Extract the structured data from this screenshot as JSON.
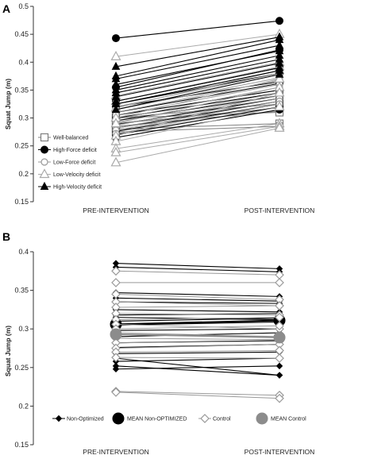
{
  "chart_data": [
    {
      "panel": "A",
      "type": "line",
      "ylabel": "Squat Jump (m)",
      "categories": [
        "PRE-INTERVENTION",
        "POST-INTERVENTION"
      ],
      "ylim": [
        0.15,
        0.5
      ],
      "yticks": [
        "0.15",
        "0.2",
        "0.25",
        "0.3",
        "0.35",
        "0.4",
        "0.45",
        "0.5"
      ],
      "grid": false,
      "legend_position": "lower-left",
      "series": [
        {
          "name": "Well-balanced",
          "marker": "square-open",
          "color": "#7f7f7f",
          "lines": [
            [
              0.3,
              0.325
            ],
            [
              0.29,
              0.318
            ],
            [
              0.285,
              0.312
            ],
            [
              0.28,
              0.29
            ],
            [
              0.275,
              0.285
            ],
            [
              0.3,
              0.31
            ]
          ]
        },
        {
          "name": "High-Force deficit",
          "marker": "circle-filled",
          "color": "#000000",
          "lines": [
            [
              0.443,
              0.474
            ],
            [
              0.355,
              0.422
            ],
            [
              0.33,
              0.39
            ],
            [
              0.325,
              0.38
            ],
            [
              0.32,
              0.365
            ],
            [
              0.31,
              0.362
            ],
            [
              0.305,
              0.35
            ],
            [
              0.3,
              0.345
            ],
            [
              0.295,
              0.34
            ],
            [
              0.288,
              0.335
            ],
            [
              0.282,
              0.33
            ],
            [
              0.276,
              0.325
            ],
            [
              0.27,
              0.32
            ],
            [
              0.265,
              0.315
            ]
          ]
        },
        {
          "name": "Low-Force deficit",
          "marker": "circle-open",
          "color": "#999999",
          "lines": [
            [
              0.32,
              0.38
            ],
            [
              0.315,
              0.372
            ],
            [
              0.31,
              0.368
            ],
            [
              0.305,
              0.36
            ],
            [
              0.298,
              0.355
            ],
            [
              0.292,
              0.345
            ],
            [
              0.287,
              0.34
            ],
            [
              0.282,
              0.335
            ],
            [
              0.278,
              0.33
            ],
            [
              0.272,
              0.325
            ]
          ]
        },
        {
          "name": "Low-Velocity deficit",
          "marker": "triangle-open",
          "color": "#aaaaaa",
          "lines": [
            [
              0.41,
              0.45
            ],
            [
              0.34,
              0.4
            ],
            [
              0.33,
              0.392
            ],
            [
              0.318,
              0.385
            ],
            [
              0.3,
              0.37
            ],
            [
              0.29,
              0.355
            ],
            [
              0.268,
              0.345
            ],
            [
              0.258,
              0.32
            ],
            [
              0.245,
              0.29
            ],
            [
              0.238,
              0.285
            ],
            [
              0.22,
              0.282
            ]
          ]
        },
        {
          "name": "High-Velocity deficit",
          "marker": "triangle-filled",
          "color": "#000000",
          "lines": [
            [
              0.392,
              0.445
            ],
            [
              0.375,
              0.44
            ],
            [
              0.37,
              0.43
            ],
            [
              0.36,
              0.42
            ],
            [
              0.35,
              0.412
            ],
            [
              0.345,
              0.405
            ],
            [
              0.338,
              0.398
            ],
            [
              0.33,
              0.39
            ],
            [
              0.325,
              0.385
            ],
            [
              0.315,
              0.378
            ]
          ]
        }
      ]
    },
    {
      "panel": "B",
      "type": "line",
      "ylabel": "Squat Jump (m)",
      "categories": [
        "PRE-INTERVENTION",
        "POST-INTERVENTION"
      ],
      "ylim": [
        0.15,
        0.4
      ],
      "yticks": [
        "0.15",
        "0.2",
        "0.25",
        "0.3",
        "0.35",
        "0.4"
      ],
      "grid": false,
      "legend_position": "bottom",
      "series": [
        {
          "name": "Non-Optimized",
          "marker": "diamond-filled",
          "color": "#000000",
          "lines": [
            [
              0.385,
              0.378
            ],
            [
              0.38,
              0.374
            ],
            [
              0.347,
              0.342
            ],
            [
              0.34,
              0.336
            ],
            [
              0.335,
              0.333
            ],
            [
              0.325,
              0.322
            ],
            [
              0.318,
              0.32
            ],
            [
              0.315,
              0.312
            ],
            [
              0.31,
              0.314
            ],
            [
              0.305,
              0.309
            ],
            [
              0.298,
              0.3
            ],
            [
              0.29,
              0.295
            ],
            [
              0.282,
              0.285
            ],
            [
              0.276,
              0.28
            ],
            [
              0.268,
              0.27
            ],
            [
              0.262,
              0.24
            ],
            [
              0.258,
              0.262
            ],
            [
              0.252,
              0.24
            ],
            [
              0.248,
              0.252
            ]
          ]
        },
        {
          "name": "MEAN Non-OPTIMIZED",
          "marker": "circle-filled-large",
          "color": "#000000",
          "lines": [
            [
              0.306,
              0.311
            ]
          ]
        },
        {
          "name": "Control",
          "marker": "diamond-open",
          "color": "#999999",
          "lines": [
            [
              0.375,
              0.37
            ],
            [
              0.36,
              0.36
            ],
            [
              0.345,
              0.338
            ],
            [
              0.335,
              0.33
            ],
            [
              0.328,
              0.33
            ],
            [
              0.32,
              0.318
            ],
            [
              0.312,
              0.315
            ],
            [
              0.306,
              0.3
            ],
            [
              0.3,
              0.304
            ],
            [
              0.295,
              0.29
            ],
            [
              0.288,
              0.286
            ],
            [
              0.282,
              0.284
            ],
            [
              0.275,
              0.28
            ],
            [
              0.27,
              0.272
            ],
            [
              0.263,
              0.262
            ],
            [
              0.219,
              0.214
            ],
            [
              0.218,
              0.21
            ]
          ]
        },
        {
          "name": "MEAN Control",
          "marker": "circle-gray-large",
          "color": "#888888",
          "lines": [
            [
              0.293,
              0.289
            ]
          ]
        }
      ]
    }
  ]
}
